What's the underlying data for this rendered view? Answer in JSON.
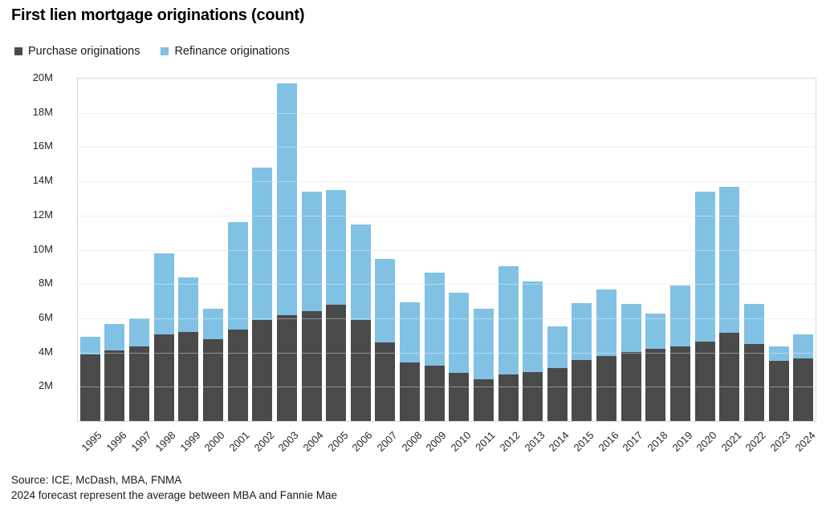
{
  "title": "First lien mortgage originations (count)",
  "legend": {
    "purchase_label": "Purchase originations",
    "refinance_label": "Refinance originations"
  },
  "colors": {
    "purchase": "#4A4A4A",
    "refinance": "#81C1E4",
    "gridline": "#E4E4E4",
    "plot_border": "#D9D9D9"
  },
  "footer": {
    "source": "Source: ICE, McDash, MBA, FNMA",
    "note": "2024 forecast represent the average between MBA and Fannie Mae"
  },
  "chart_data": {
    "type": "bar",
    "stacked": true,
    "title": "First lien mortgage originations (count)",
    "categories": [
      "1995",
      "1996",
      "1997",
      "1998",
      "1999",
      "2000",
      "2001",
      "2002",
      "2003",
      "2004",
      "2005",
      "2006",
      "2007",
      "2008",
      "2009",
      "2010",
      "2011",
      "2012",
      "2013",
      "2014",
      "2015",
      "2016",
      "2017",
      "2018",
      "2019",
      "2020",
      "2021",
      "2022",
      "2023",
      "2024"
    ],
    "series": [
      {
        "name": "Purchase originations",
        "values": [
          3.9,
          4.1,
          4.35,
          5.05,
          5.2,
          4.8,
          5.35,
          5.9,
          6.2,
          6.4,
          6.8,
          5.9,
          4.6,
          3.4,
          3.25,
          2.8,
          2.45,
          2.7,
          2.85,
          3.1,
          3.55,
          3.8,
          4.05,
          4.2,
          4.35,
          4.65,
          5.15,
          4.5,
          3.5,
          3.65
        ]
      },
      {
        "name": "Refinance originations",
        "values": [
          1.0,
          1.55,
          1.65,
          4.75,
          3.2,
          1.75,
          6.25,
          8.9,
          13.5,
          7.0,
          6.7,
          5.6,
          4.85,
          3.55,
          5.4,
          4.7,
          4.1,
          6.35,
          5.3,
          2.45,
          3.35,
          3.9,
          2.8,
          2.1,
          3.55,
          8.75,
          8.55,
          2.35,
          0.85,
          1.4
        ]
      }
    ],
    "y_ticks": [
      {
        "label": "2M",
        "value": 2
      },
      {
        "label": "4M",
        "value": 4
      },
      {
        "label": "6M",
        "value": 6
      },
      {
        "label": "8M",
        "value": 8
      },
      {
        "label": "10M",
        "value": 10
      },
      {
        "label": "12M",
        "value": 12
      },
      {
        "label": "14M",
        "value": 14
      },
      {
        "label": "16M",
        "value": 16
      },
      {
        "label": "18M",
        "value": 18
      },
      {
        "label": "20M",
        "value": 20
      }
    ],
    "ylim": [
      0,
      20
    ],
    "unit": "M",
    "xlabel": "",
    "ylabel": "",
    "grid": "horizontal",
    "legend_position": "top-left"
  }
}
